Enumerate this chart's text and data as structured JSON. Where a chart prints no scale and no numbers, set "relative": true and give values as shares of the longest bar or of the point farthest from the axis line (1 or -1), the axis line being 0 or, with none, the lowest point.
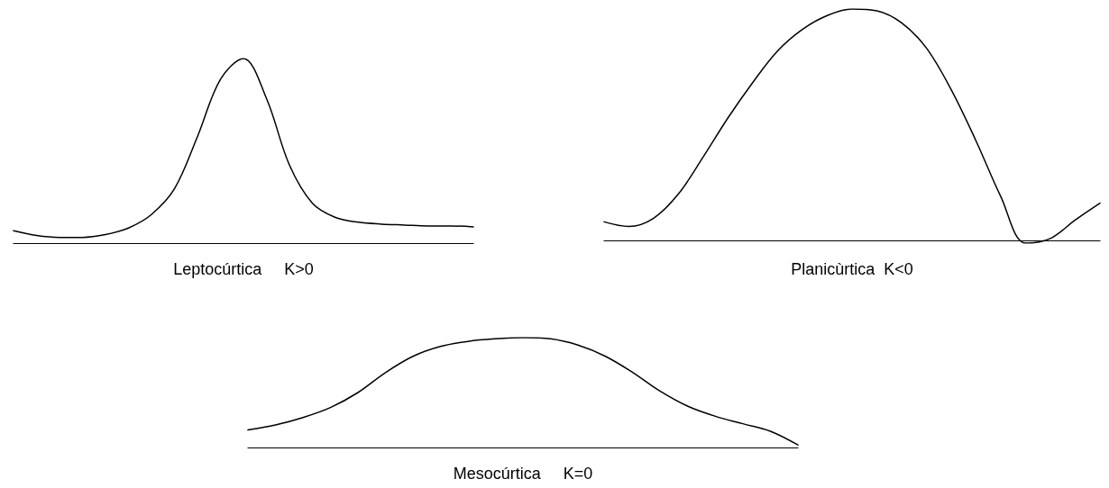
{
  "chart_data": [
    {
      "type": "line",
      "relative": true,
      "xlabel": "Leptocúrtica     K>0",
      "marker": "none",
      "categories": [
        null,
        null,
        null,
        null,
        null,
        null,
        null,
        null,
        null,
        null,
        null,
        null,
        null,
        null,
        null,
        null,
        null,
        null,
        null,
        null,
        null
      ],
      "series": [
        {
          "color": "#000000",
          "values": [
            0.067,
            0.041,
            0.031,
            0.031,
            0.046,
            0.082,
            0.155,
            0.294,
            0.577,
            0.887,
            1,
            0.784,
            0.423,
            0.216,
            0.139,
            0.113,
            0.103,
            0.098,
            0.093,
            0.093,
            0.088
          ]
        }
      ]
    },
    {
      "type": "line",
      "relative": true,
      "xlabel": "Planicùrtica  K<0",
      "marker": "none",
      "categories": [
        null,
        null,
        null,
        null,
        null,
        null,
        null,
        null,
        null,
        null,
        null,
        null,
        null,
        null,
        null,
        null,
        null,
        null,
        null,
        null,
        null
      ],
      "series": [
        {
          "color": "#000000",
          "values": [
            0.08,
            0.06,
            0.096,
            0.201,
            0.361,
            0.53,
            0.683,
            0.819,
            0.912,
            0.972,
            1,
            0.992,
            0.94,
            0.831,
            0.651,
            0.43,
            0.189,
            -0.012,
            0.008,
            0.088,
            0.161
          ]
        }
      ]
    },
    {
      "type": "line",
      "relative": true,
      "xlabel": "Mesocúrtica     K=0",
      "marker": "none",
      "categories": [
        null,
        null,
        null,
        null,
        null,
        null,
        null,
        null,
        null,
        null,
        null,
        null,
        null,
        null,
        null,
        null,
        null,
        null,
        null,
        null,
        null
      ],
      "series": [
        {
          "color": "#000000",
          "values": [
            0.159,
            0.205,
            0.273,
            0.364,
            0.5,
            0.682,
            0.83,
            0.92,
            0.966,
            0.989,
            1,
            0.989,
            0.932,
            0.83,
            0.682,
            0.511,
            0.375,
            0.284,
            0.216,
            0.148,
            0.023
          ]
        }
      ]
    }
  ]
}
